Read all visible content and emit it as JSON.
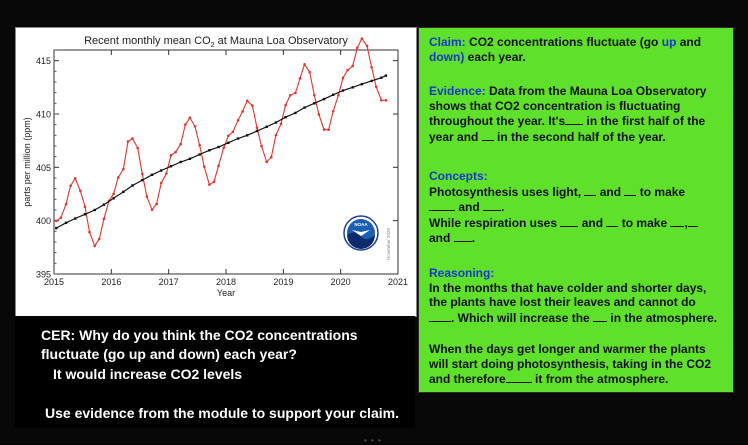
{
  "chart_data": {
    "type": "line",
    "title_parts": [
      "Recent monthly mean CO",
      "2",
      " at Mauna Loa Observatory"
    ],
    "xlabel": "Year",
    "ylabel": "parts per million (ppm)",
    "xlim": [
      2015,
      2021
    ],
    "ylim": [
      395,
      416
    ],
    "x_ticks": [
      "2015",
      "2016",
      "2017",
      "2018",
      "2019",
      "2020",
      "2021"
    ],
    "y_ticks": [
      "395",
      "400",
      "405",
      "410",
      "415"
    ],
    "watermark": "November 2020",
    "logo_text": "NOAA",
    "series": [
      {
        "role": "monthly mean",
        "color": "#e8322a",
        "x": [
          2015.04,
          2015.12,
          2015.21,
          2015.29,
          2015.37,
          2015.46,
          2015.54,
          2015.62,
          2015.71,
          2015.79,
          2015.87,
          2015.96,
          2016.04,
          2016.12,
          2016.21,
          2016.29,
          2016.37,
          2016.46,
          2016.54,
          2016.62,
          2016.71,
          2016.79,
          2016.87,
          2016.96,
          2017.04,
          2017.12,
          2017.21,
          2017.29,
          2017.37,
          2017.46,
          2017.54,
          2017.62,
          2017.71,
          2017.79,
          2017.87,
          2017.96,
          2018.04,
          2018.12,
          2018.21,
          2018.29,
          2018.37,
          2018.46,
          2018.54,
          2018.62,
          2018.71,
          2018.79,
          2018.87,
          2018.96,
          2019.04,
          2019.12,
          2019.21,
          2019.29,
          2019.37,
          2019.46,
          2019.54,
          2019.62,
          2019.71,
          2019.79,
          2019.87,
          2019.96,
          2020.04,
          2020.12,
          2020.21,
          2020.29,
          2020.37,
          2020.46,
          2020.54,
          2020.62,
          2020.71,
          2020.79
        ],
        "values": [
          399.98,
          400.28,
          401.54,
          403.28,
          403.96,
          402.8,
          401.31,
          398.93,
          397.63,
          398.29,
          400.16,
          401.85,
          402.52,
          404.04,
          404.83,
          407.42,
          407.7,
          406.81,
          404.39,
          402.25,
          401.03,
          401.57,
          403.53,
          404.42,
          406.13,
          406.42,
          407.18,
          409.0,
          409.65,
          408.84,
          407.07,
          405.07,
          403.38,
          403.64,
          405.14,
          406.82,
          407.96,
          408.32,
          409.41,
          410.24,
          411.24,
          410.79,
          408.71,
          406.99,
          405.51,
          405.95,
          408.02,
          409.07,
          410.83,
          411.75,
          411.97,
          413.33,
          414.66,
          413.92,
          411.77,
          409.95,
          408.54,
          408.53,
          410.27,
          411.76,
          413.39,
          414.11,
          414.51,
          416.21,
          417.07,
          416.39,
          414.38,
          412.55,
          411.29,
          411.28
        ]
      },
      {
        "role": "seasonal trend",
        "color": "#111111",
        "x": [
          2015.04,
          2015.21,
          2015.37,
          2015.54,
          2015.71,
          2015.87,
          2016.04,
          2016.21,
          2016.37,
          2016.54,
          2016.71,
          2016.87,
          2017.04,
          2017.21,
          2017.37,
          2017.54,
          2017.71,
          2017.87,
          2018.04,
          2018.21,
          2018.37,
          2018.54,
          2018.71,
          2018.87,
          2019.04,
          2019.21,
          2019.37,
          2019.54,
          2019.71,
          2019.87,
          2020.04,
          2020.21,
          2020.37,
          2020.54,
          2020.71,
          2020.79
        ],
        "values": [
          399.3,
          399.8,
          400.2,
          400.6,
          401.0,
          401.5,
          402.1,
          402.7,
          403.3,
          403.8,
          404.3,
          404.7,
          405.1,
          405.5,
          405.8,
          406.2,
          406.6,
          406.9,
          407.3,
          407.7,
          408.0,
          408.4,
          408.8,
          409.2,
          409.7,
          410.1,
          410.6,
          411.0,
          411.4,
          411.8,
          412.2,
          412.5,
          412.8,
          413.1,
          413.4,
          413.6
        ]
      }
    ]
  },
  "cer": {
    "question": "CER: Why do you think the CO2 concentrations fluctuate (go up and down) each year?",
    "answer": "It would increase CO2 levels",
    "instruction": "Use evidence from the module to support your claim."
  },
  "panel": {
    "background": "#5fe12c",
    "claim": {
      "label": "Claim:",
      "t1": "CO2 concentrations fluctuate (go",
      "up": "up",
      "t2": "and",
      "down": "down)",
      "t3": "each year."
    },
    "evidence": {
      "label": "Evidence:",
      "t1": "Data from the Mauna Loa Observatory shows that CO2 concentration is fluctuating throughout the year. It's",
      "t2": "in the first half of the year and",
      "t3": "in the second half of the year."
    },
    "concepts": {
      "label": "Concepts:",
      "t1": "Photosynthesis uses light,",
      "t2": "and",
      "t3": "to make",
      "t4": "and",
      "t5": ".",
      "t6": "While respiration uses",
      "t7": "and",
      "t8": "to make",
      "t9": ",",
      "t10": "and",
      "t11": "."
    },
    "reasoning": {
      "label": "Reasoning:",
      "t1": "In the months that have colder and shorter days, the plants have lost their leaves and cannot do",
      "t2": ". Which will increase the",
      "t3": "in the atmosphere.",
      "t4": "When the days get longer and warmer the plants will start doing photosynthesis, taking in the CO2 and therefore",
      "t5": "it from the atmosphere."
    }
  },
  "footer_dots": "• • •"
}
